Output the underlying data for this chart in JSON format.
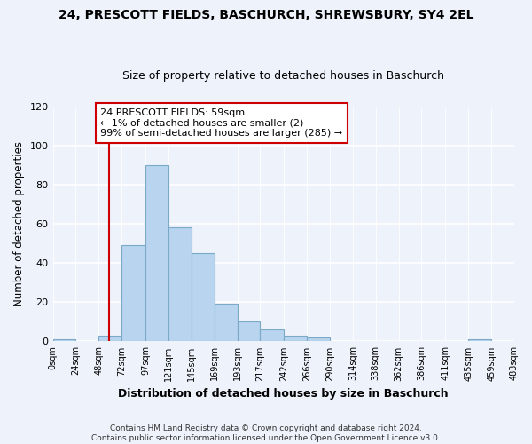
{
  "title": "24, PRESCOTT FIELDS, BASCHURCH, SHREWSBURY, SY4 2EL",
  "subtitle": "Size of property relative to detached houses in Baschurch",
  "xlabel": "Distribution of detached houses by size in Baschurch",
  "ylabel": "Number of detached properties",
  "bar_color": "#b8d4ee",
  "bar_edge_color": "#7aaac8",
  "bin_edges": [
    0,
    24,
    48,
    72,
    97,
    121,
    145,
    169,
    193,
    217,
    242,
    266,
    290,
    314,
    338,
    362,
    386,
    411,
    435,
    459,
    483
  ],
  "bar_heights": [
    1,
    0,
    3,
    49,
    90,
    58,
    45,
    19,
    10,
    6,
    3,
    2,
    0,
    0,
    0,
    0,
    0,
    0,
    1,
    0
  ],
  "tick_labels": [
    "0sqm",
    "24sqm",
    "48sqm",
    "72sqm",
    "97sqm",
    "121sqm",
    "145sqm",
    "169sqm",
    "193sqm",
    "217sqm",
    "242sqm",
    "266sqm",
    "290sqm",
    "314sqm",
    "338sqm",
    "362sqm",
    "386sqm",
    "411sqm",
    "435sqm",
    "459sqm",
    "483sqm"
  ],
  "ylim": [
    0,
    120
  ],
  "yticks": [
    0,
    20,
    40,
    60,
    80,
    100,
    120
  ],
  "red_line_x": 59,
  "ann_title": "24 PRESCOTT FIELDS: 59sqm",
  "ann_line1": "← 1% of detached houses are smaller (2)",
  "ann_line2": "99% of semi-detached houses are larger (285) →",
  "footer_line1": "Contains HM Land Registry data © Crown copyright and database right 2024.",
  "footer_line2": "Contains public sector information licensed under the Open Government Licence v3.0.",
  "background_color": "#eef2fb",
  "grid_color": "#d0d8ee"
}
